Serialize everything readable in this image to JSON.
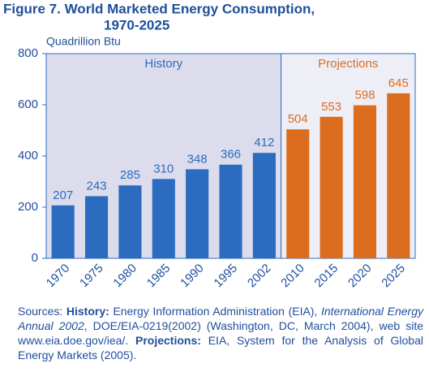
{
  "chart_data": {
    "type": "bar",
    "title": [
      "Figure 7.  World Marketed Energy Consumption,",
      "1970-2025"
    ],
    "y_label": "Quadrillion Btu",
    "categories": [
      "1970",
      "1975",
      "1980",
      "1985",
      "1990",
      "1995",
      "2002",
      "2010",
      "2015",
      "2020",
      "2025"
    ],
    "series": [
      {
        "name": "History",
        "color": "#2b6cc0",
        "values": [
          207,
          243,
          285,
          310,
          348,
          366,
          412,
          null,
          null,
          null,
          null
        ]
      },
      {
        "name": "Projections",
        "color": "#dc6d1e",
        "values": [
          null,
          null,
          null,
          null,
          null,
          null,
          null,
          504,
          553,
          598,
          645
        ]
      }
    ],
    "ylim": [
      0,
      800
    ],
    "yticks": [
      0,
      200,
      400,
      600,
      800
    ],
    "grid": false,
    "sources": [
      "Sources: ",
      "History:",
      " Energy Information Administration (EIA), ",
      "International Energy Annual 2002",
      ", DOE/EIA-0219(2002) (Washington, DC, March 2004), web site www.eia.doe.gov/iea/. ",
      "Projections:",
      " EIA, System for the Analysis of Global Energy Markets (2005)."
    ]
  }
}
